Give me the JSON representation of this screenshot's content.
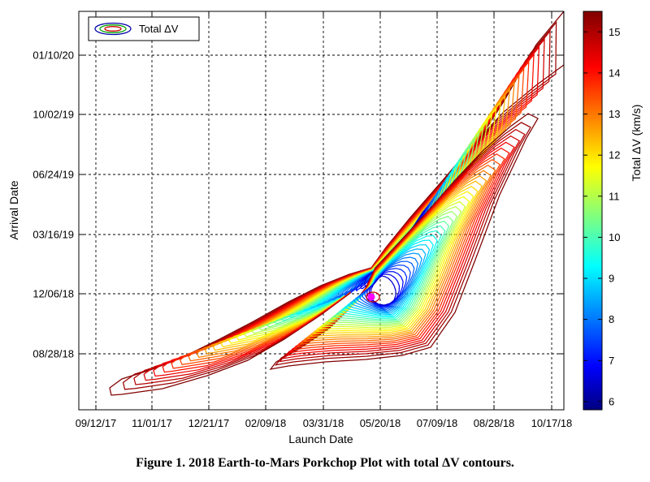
{
  "chart_data": {
    "type": "contour",
    "x_axis": {
      "label": "Launch Date",
      "tick_labels": [
        "09/12/17",
        "11/01/17",
        "12/21/17",
        "02/09/18",
        "03/31/18",
        "05/20/18",
        "07/09/18",
        "08/28/18",
        "10/17/18"
      ]
    },
    "y_axis": {
      "label": "Arrival Date",
      "tick_labels": [
        "08/28/18",
        "12/06/18",
        "03/16/19",
        "06/24/19",
        "10/02/19",
        "01/10/20"
      ]
    },
    "colorbar": {
      "label": "Total ΔV (km/s)",
      "range": [
        5.8,
        15.5
      ],
      "ticks": [
        6,
        7,
        8,
        9,
        10,
        11,
        12,
        13,
        14,
        15
      ]
    },
    "legend": {
      "entry": "Total ΔV",
      "position": "top-left"
    },
    "minimum_marker": {
      "launch": "05/14/18",
      "arrival": "11/26/18",
      "color": "#ff00ff"
    },
    "grid": true,
    "caption": "Figure 1.  2018 Earth-to-Mars Porkchop Plot with total ΔV contours.",
    "colors": {
      "low": "#000080",
      "mid": "#00ffff",
      "high": "#800000"
    }
  }
}
